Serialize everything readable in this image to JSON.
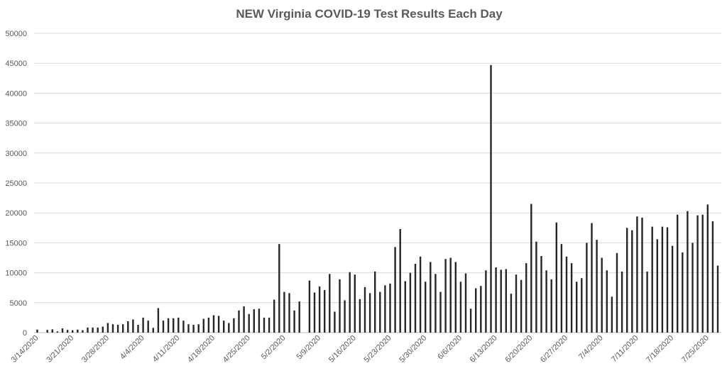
{
  "chart_data": {
    "type": "bar",
    "title": "NEW Virginia COVID-19 Test Results Each Day",
    "xlabel": "",
    "ylabel": "",
    "ylim": [
      0,
      50000
    ],
    "yticks": [
      0,
      5000,
      10000,
      15000,
      20000,
      25000,
      30000,
      35000,
      40000,
      45000,
      50000
    ],
    "grid": true,
    "legend": "none",
    "bar_color": "#262626",
    "x_tick_labels": [
      {
        "label": "3/14/2020",
        "day": 0
      },
      {
        "label": "3/21/2020",
        "day": 7
      },
      {
        "label": "3/28/2020",
        "day": 14
      },
      {
        "label": "4/4/2020",
        "day": 21
      },
      {
        "label": "4/11/2020",
        "day": 28
      },
      {
        "label": "4/18/2020",
        "day": 35
      },
      {
        "label": "4/25/2020",
        "day": 42
      },
      {
        "label": "5/2/2020",
        "day": 49
      },
      {
        "label": "5/9/2020",
        "day": 56
      },
      {
        "label": "5/16/2020",
        "day": 63
      },
      {
        "label": "5/23/2020",
        "day": 70
      },
      {
        "label": "5/30/2020",
        "day": 77
      },
      {
        "label": "6/6/2020",
        "day": 84
      },
      {
        "label": "6/13/2020",
        "day": 91
      },
      {
        "label": "6/20/2020",
        "day": 98
      },
      {
        "label": "6/27/2020",
        "day": 105
      },
      {
        "label": "7/4/2020",
        "day": 112
      },
      {
        "label": "7/11/2020",
        "day": 119
      },
      {
        "label": "7/18/2020",
        "day": 126
      },
      {
        "label": "7/25/2020",
        "day": 133
      }
    ],
    "values": [
      500,
      0,
      450,
      550,
      200,
      700,
      450,
      400,
      500,
      400,
      850,
      850,
      850,
      1000,
      1600,
      1400,
      1300,
      1400,
      1900,
      2200,
      1300,
      2500,
      2000,
      800,
      4100,
      2000,
      2400,
      2400,
      2500,
      2000,
      1400,
      1300,
      1400,
      2300,
      2500,
      2900,
      2800,
      2000,
      1600,
      2400,
      3700,
      4400,
      3100,
      3900,
      4000,
      2500,
      2500,
      5500,
      14800,
      6800,
      6600,
      3700,
      5200,
      0,
      8700,
      6700,
      7700,
      7100,
      9800,
      3500,
      8900,
      5400,
      10100,
      9700,
      5600,
      7600,
      6600,
      10200,
      6800,
      7900,
      8200,
      14300,
      17300,
      8600,
      10000,
      11500,
      12700,
      8500,
      11800,
      9800,
      6800,
      12300,
      12500,
      11800,
      8500,
      9900,
      4000,
      7400,
      7800,
      10400,
      44700,
      10900,
      10500,
      10600,
      6500,
      9700,
      8800,
      11600,
      21500,
      15200,
      12800,
      10400,
      8900,
      18400,
      14800,
      12700,
      11600,
      8500,
      9100,
      15000,
      18300,
      15500,
      12500,
      10400,
      6000,
      13300,
      10200,
      17500,
      17100,
      19400,
      19200,
      10200,
      17700,
      15600,
      17700,
      17600,
      14500,
      19700,
      13400,
      20300,
      15000,
      19600,
      19700,
      21400,
      18600,
      11200
    ]
  }
}
